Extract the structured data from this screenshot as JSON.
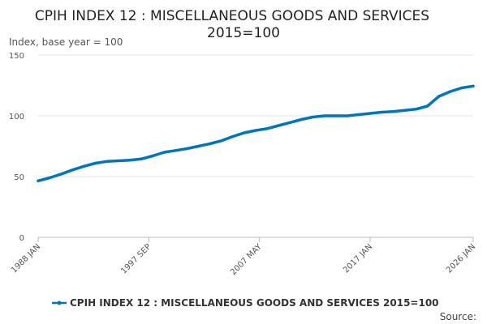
{
  "chart_data": {
    "type": "line",
    "title_line1": "CPIH INDEX 12 : MISCELLANEOUS GOODS AND SERVICES",
    "title_line2": "2015=100",
    "ylabel": "Index, base year = 100",
    "ylim": [
      0,
      150
    ],
    "yticks": [
      0,
      50,
      100,
      150
    ],
    "xlim": [
      1988.0,
      2026.0
    ],
    "xticks": [
      {
        "label": "1988 JAN",
        "x": 1988.0
      },
      {
        "label": "1997 SEP",
        "x": 1997.667
      },
      {
        "label": "2007 MAY",
        "x": 2007.333
      },
      {
        "label": "2017 JAN",
        "x": 2017.0
      },
      {
        "label": "2026 JAN",
        "x": 2026.0
      }
    ],
    "grid": true,
    "legend_position": "bottom",
    "series": [
      {
        "name": "CPIH INDEX 12 : MISCELLANEOUS GOODS AND SERVICES 2015=100",
        "color": "#0076b6",
        "x": [
          1988.0,
          1989.0,
          1990.0,
          1991.0,
          1992.0,
          1993.0,
          1994.0,
          1995.0,
          1996.0,
          1997.0,
          1998.0,
          1999.0,
          2000.0,
          2001.0,
          2002.0,
          2003.0,
          2004.0,
          2005.0,
          2006.0,
          2007.0,
          2008.0,
          2009.0,
          2010.0,
          2011.0,
          2012.0,
          2013.0,
          2014.0,
          2015.0,
          2016.0,
          2017.0,
          2018.0,
          2019.0,
          2020.0,
          2021.0,
          2022.0,
          2023.0,
          2024.0,
          2025.0,
          2026.0
        ],
        "y": [
          46.5,
          49.0,
          52.0,
          55.5,
          58.5,
          61.0,
          62.5,
          63.0,
          63.5,
          64.5,
          67.0,
          70.0,
          71.5,
          73.0,
          75.0,
          77.0,
          79.5,
          83.0,
          86.0,
          88.0,
          89.5,
          92.0,
          94.5,
          97.0,
          99.0,
          100.0,
          100.0,
          100.0,
          101.0,
          102.0,
          103.0,
          103.5,
          104.5,
          105.5,
          108.0,
          116.0,
          120.0,
          123.0,
          124.5
        ]
      }
    ]
  },
  "source_label": "Source:"
}
